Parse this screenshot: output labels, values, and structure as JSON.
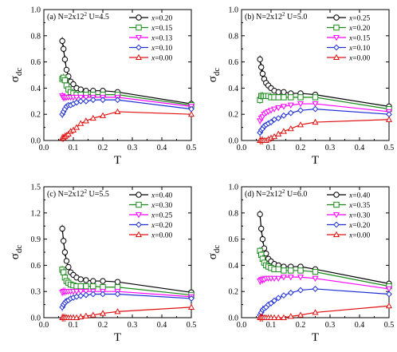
{
  "figure": {
    "colors": {
      "black": "#000000",
      "green": "#1a8a1a",
      "magenta": "#ff00ff",
      "blue": "#1f2fd6",
      "red": "#e01010"
    },
    "markers": [
      "circle",
      "square",
      "triangle-down",
      "diamond",
      "triangle-up"
    ]
  },
  "chart_data": [
    {
      "type": "line",
      "title": "(a) N=2x12",
      "title_sup": "2",
      "title_suffix": " U=4.5",
      "xlabel": "T",
      "ylabel": "σ",
      "ylabel_sub": "dc",
      "xlim": [
        0,
        0.5
      ],
      "ylim": [
        0,
        1.0
      ],
      "xticks": [
        "0.0",
        "0.1",
        "0.2",
        "0.3",
        "0.4",
        "0.5"
      ],
      "yticks": [
        "0.0",
        "0.2",
        "0.4",
        "0.6",
        "0.8",
        "1.0"
      ],
      "legend_position": "top-right",
      "series": [
        {
          "name": "x=0.20",
          "x": [
            0.0625,
            0.0667,
            0.0714,
            0.0769,
            0.0833,
            0.0909,
            0.1,
            0.111,
            0.125,
            0.143,
            0.167,
            0.2,
            0.25,
            0.5
          ],
          "y": [
            0.76,
            0.7,
            0.62,
            0.54,
            0.49,
            0.45,
            0.43,
            0.4,
            0.39,
            0.38,
            0.38,
            0.38,
            0.37,
            0.28
          ]
        },
        {
          "name": "x=0.15",
          "x": [
            0.0625,
            0.0667,
            0.0714,
            0.0769,
            0.0833,
            0.0909,
            0.1,
            0.111,
            0.125,
            0.143,
            0.167,
            0.2,
            0.25,
            0.5
          ],
          "y": [
            0.47,
            0.48,
            0.46,
            0.42,
            0.39,
            0.37,
            0.36,
            0.35,
            0.35,
            0.35,
            0.35,
            0.35,
            0.35,
            0.27
          ]
        },
        {
          "name": "x=0.13",
          "x": [
            0.0625,
            0.0667,
            0.0714,
            0.0769,
            0.0833,
            0.0909,
            0.1,
            0.111,
            0.125,
            0.143,
            0.167,
            0.2,
            0.25,
            0.5
          ],
          "y": [
            0.34,
            0.33,
            0.33,
            0.33,
            0.33,
            0.33,
            0.33,
            0.33,
            0.33,
            0.33,
            0.33,
            0.33,
            0.33,
            0.26
          ]
        },
        {
          "name": "x=0.10",
          "x": [
            0.0625,
            0.0667,
            0.0714,
            0.0769,
            0.0833,
            0.0909,
            0.1,
            0.111,
            0.125,
            0.143,
            0.167,
            0.2,
            0.25,
            0.5
          ],
          "y": [
            0.2,
            0.22,
            0.24,
            0.26,
            0.27,
            0.27,
            0.28,
            0.29,
            0.3,
            0.3,
            0.31,
            0.31,
            0.31,
            0.24
          ]
        },
        {
          "name": "x=0.00",
          "x": [
            0.0625,
            0.0667,
            0.0714,
            0.0769,
            0.0833,
            0.0909,
            0.1,
            0.111,
            0.125,
            0.143,
            0.167,
            0.2,
            0.25,
            0.5
          ],
          "y": [
            0.02,
            0.02,
            0.03,
            0.04,
            0.05,
            0.07,
            0.08,
            0.1,
            0.13,
            0.15,
            0.17,
            0.19,
            0.22,
            0.2
          ]
        }
      ]
    },
    {
      "type": "line",
      "title": "(b) N=2x12",
      "title_sup": "2",
      "title_suffix": " U=5.0",
      "xlabel": "T",
      "ylabel": "σ",
      "ylabel_sub": "dc",
      "xlim": [
        0,
        0.5
      ],
      "ylim": [
        0,
        1.0
      ],
      "xticks": [
        "0.0",
        "0.1",
        "0.2",
        "0.3",
        "0.4",
        "0.5"
      ],
      "yticks": [
        "0.0",
        "0.2",
        "0.4",
        "0.6",
        "0.8",
        "1.0"
      ],
      "legend_position": "top-right",
      "series": [
        {
          "name": "x=0.25",
          "x": [
            0.0625,
            0.0667,
            0.0714,
            0.0769,
            0.0833,
            0.0909,
            0.1,
            0.111,
            0.125,
            0.143,
            0.167,
            0.2,
            0.25,
            0.5
          ],
          "y": [
            0.62,
            0.56,
            0.51,
            0.47,
            0.44,
            0.42,
            0.4,
            0.38,
            0.37,
            0.37,
            0.36,
            0.36,
            0.35,
            0.26
          ]
        },
        {
          "name": "x=0.20",
          "x": [
            0.0625,
            0.0667,
            0.0714,
            0.0769,
            0.0833,
            0.0909,
            0.1,
            0.111,
            0.125,
            0.143,
            0.167,
            0.2,
            0.25,
            0.5
          ],
          "y": [
            0.31,
            0.34,
            0.34,
            0.34,
            0.34,
            0.34,
            0.33,
            0.33,
            0.33,
            0.33,
            0.33,
            0.33,
            0.33,
            0.24
          ]
        },
        {
          "name": "x=0.15",
          "x": [
            0.0625,
            0.0667,
            0.0714,
            0.0769,
            0.0833,
            0.0909,
            0.1,
            0.111,
            0.125,
            0.143,
            0.167,
            0.2,
            0.25,
            0.5
          ],
          "y": [
            0.15,
            0.17,
            0.18,
            0.2,
            0.21,
            0.22,
            0.23,
            0.24,
            0.25,
            0.26,
            0.27,
            0.28,
            0.28,
            0.22
          ]
        },
        {
          "name": "x=0.10",
          "x": [
            0.0625,
            0.0667,
            0.0714,
            0.0769,
            0.0833,
            0.0909,
            0.1,
            0.111,
            0.125,
            0.143,
            0.167,
            0.2,
            0.25,
            0.5
          ],
          "y": [
            0.06,
            0.08,
            0.09,
            0.11,
            0.12,
            0.13,
            0.14,
            0.16,
            0.17,
            0.19,
            0.21,
            0.23,
            0.24,
            0.2
          ]
        },
        {
          "name": "x=0.00",
          "x": [
            0.0625,
            0.0667,
            0.0714,
            0.0769,
            0.0833,
            0.0909,
            0.1,
            0.111,
            0.125,
            0.143,
            0.167,
            0.2,
            0.25,
            0.5
          ],
          "y": [
            0.0,
            0.0,
            0.0,
            0.0,
            0.0,
            0.01,
            0.02,
            0.03,
            0.05,
            0.07,
            0.09,
            0.12,
            0.14,
            0.16
          ]
        }
      ]
    },
    {
      "type": "line",
      "title": "(c) N=2x12",
      "title_sup": "2",
      "title_suffix": " U=5.5",
      "xlabel": "T",
      "ylabel": "σ",
      "ylabel_sub": "dc",
      "xlim": [
        0,
        0.5
      ],
      "ylim": [
        0,
        1.5
      ],
      "xticks": [
        "0.0",
        "0.1",
        "0.2",
        "0.3",
        "0.4",
        "0.5"
      ],
      "yticks": [
        "0.0",
        "0.3",
        "0.6",
        "0.9",
        "1.2",
        "1.5"
      ],
      "legend_position": "top-right",
      "series": [
        {
          "name": "x=0.40",
          "x": [
            0.0625,
            0.0667,
            0.0714,
            0.0769,
            0.0833,
            0.0909,
            0.1,
            0.111,
            0.125,
            0.143,
            0.167,
            0.2,
            0.25,
            0.5
          ],
          "y": [
            1.02,
            0.88,
            0.75,
            0.65,
            0.58,
            0.52,
            0.49,
            0.46,
            0.44,
            0.43,
            0.42,
            0.42,
            0.41,
            0.29
          ]
        },
        {
          "name": "x=0.30",
          "x": [
            0.0625,
            0.0667,
            0.0714,
            0.0769,
            0.0833,
            0.0909,
            0.1,
            0.111,
            0.125,
            0.143,
            0.167,
            0.2,
            0.25,
            0.5
          ],
          "y": [
            0.55,
            0.52,
            0.46,
            0.42,
            0.4,
            0.38,
            0.37,
            0.36,
            0.36,
            0.36,
            0.36,
            0.35,
            0.35,
            0.26
          ]
        },
        {
          "name": "x=0.25",
          "x": [
            0.0625,
            0.0667,
            0.0714,
            0.0769,
            0.0833,
            0.0909,
            0.1,
            0.111,
            0.125,
            0.143,
            0.167,
            0.2,
            0.25,
            0.5
          ],
          "y": [
            0.29,
            0.3,
            0.3,
            0.3,
            0.3,
            0.3,
            0.3,
            0.3,
            0.3,
            0.3,
            0.3,
            0.3,
            0.3,
            0.24
          ]
        },
        {
          "name": "x=0.20",
          "x": [
            0.0625,
            0.0667,
            0.0714,
            0.0769,
            0.0833,
            0.0909,
            0.1,
            0.111,
            0.125,
            0.143,
            0.167,
            0.2,
            0.25,
            0.5
          ],
          "y": [
            0.12,
            0.15,
            0.17,
            0.19,
            0.2,
            0.22,
            0.23,
            0.24,
            0.25,
            0.26,
            0.27,
            0.27,
            0.27,
            0.22
          ]
        },
        {
          "name": "x=0.00",
          "x": [
            0.0625,
            0.0667,
            0.0714,
            0.0769,
            0.0833,
            0.0909,
            0.1,
            0.111,
            0.125,
            0.143,
            0.167,
            0.2,
            0.25,
            0.5
          ],
          "y": [
            0.0,
            0.0,
            0.0,
            0.0,
            0.0,
            0.0,
            0.0,
            0.0,
            0.01,
            0.02,
            0.03,
            0.05,
            0.07,
            0.12
          ]
        }
      ]
    },
    {
      "type": "line",
      "title": "(d) N=2x12",
      "title_sup": "2",
      "title_suffix": " U=6.0",
      "xlabel": "T",
      "ylabel": "σ",
      "ylabel_sub": "dc",
      "xlim": [
        0,
        0.5
      ],
      "ylim": [
        0,
        1.0
      ],
      "xticks": [
        "0.0",
        "0.1",
        "0.2",
        "0.3",
        "0.4",
        "0.5"
      ],
      "yticks": [
        "0.0",
        "0.2",
        "0.4",
        "0.6",
        "0.8",
        "1.0"
      ],
      "legend_position": "top-right",
      "series": [
        {
          "name": "x=0.40",
          "x": [
            0.0625,
            0.0667,
            0.0714,
            0.0769,
            0.0833,
            0.0909,
            0.1,
            0.111,
            0.125,
            0.143,
            0.167,
            0.2,
            0.25,
            0.5
          ],
          "y": [
            0.79,
            0.68,
            0.6,
            0.53,
            0.49,
            0.45,
            0.43,
            0.41,
            0.4,
            0.39,
            0.39,
            0.39,
            0.37,
            0.26
          ]
        },
        {
          "name": "x=0.35",
          "x": [
            0.0625,
            0.0667,
            0.0714,
            0.0769,
            0.0833,
            0.0909,
            0.1,
            0.111,
            0.125,
            0.143,
            0.167,
            0.2,
            0.25,
            0.5
          ],
          "y": [
            0.51,
            0.48,
            0.45,
            0.42,
            0.4,
            0.39,
            0.38,
            0.37,
            0.37,
            0.36,
            0.36,
            0.36,
            0.35,
            0.24
          ]
        },
        {
          "name": "x=0.30",
          "x": [
            0.0625,
            0.0667,
            0.0714,
            0.0769,
            0.0833,
            0.0909,
            0.1,
            0.111,
            0.125,
            0.143,
            0.167,
            0.2,
            0.25,
            0.5
          ],
          "y": [
            0.28,
            0.29,
            0.29,
            0.29,
            0.3,
            0.3,
            0.3,
            0.3,
            0.3,
            0.31,
            0.31,
            0.31,
            0.3,
            0.22
          ]
        },
        {
          "name": "x=0.20",
          "x": [
            0.0625,
            0.0667,
            0.0714,
            0.0769,
            0.0833,
            0.0909,
            0.1,
            0.111,
            0.125,
            0.143,
            0.167,
            0.2,
            0.25,
            0.5
          ],
          "y": [
            0.02,
            0.04,
            0.06,
            0.07,
            0.08,
            0.1,
            0.11,
            0.13,
            0.15,
            0.17,
            0.19,
            0.21,
            0.22,
            0.18
          ]
        },
        {
          "name": "x=0.00",
          "x": [
            0.0625,
            0.0667,
            0.0714,
            0.0769,
            0.0833,
            0.0909,
            0.1,
            0.111,
            0.125,
            0.143,
            0.167,
            0.2,
            0.25,
            0.5
          ],
          "y": [
            0.0,
            0.0,
            0.0,
            0.0,
            0.0,
            0.0,
            0.0,
            0.0,
            0.0,
            0.0,
            0.01,
            0.02,
            0.04,
            0.09
          ]
        }
      ]
    }
  ]
}
